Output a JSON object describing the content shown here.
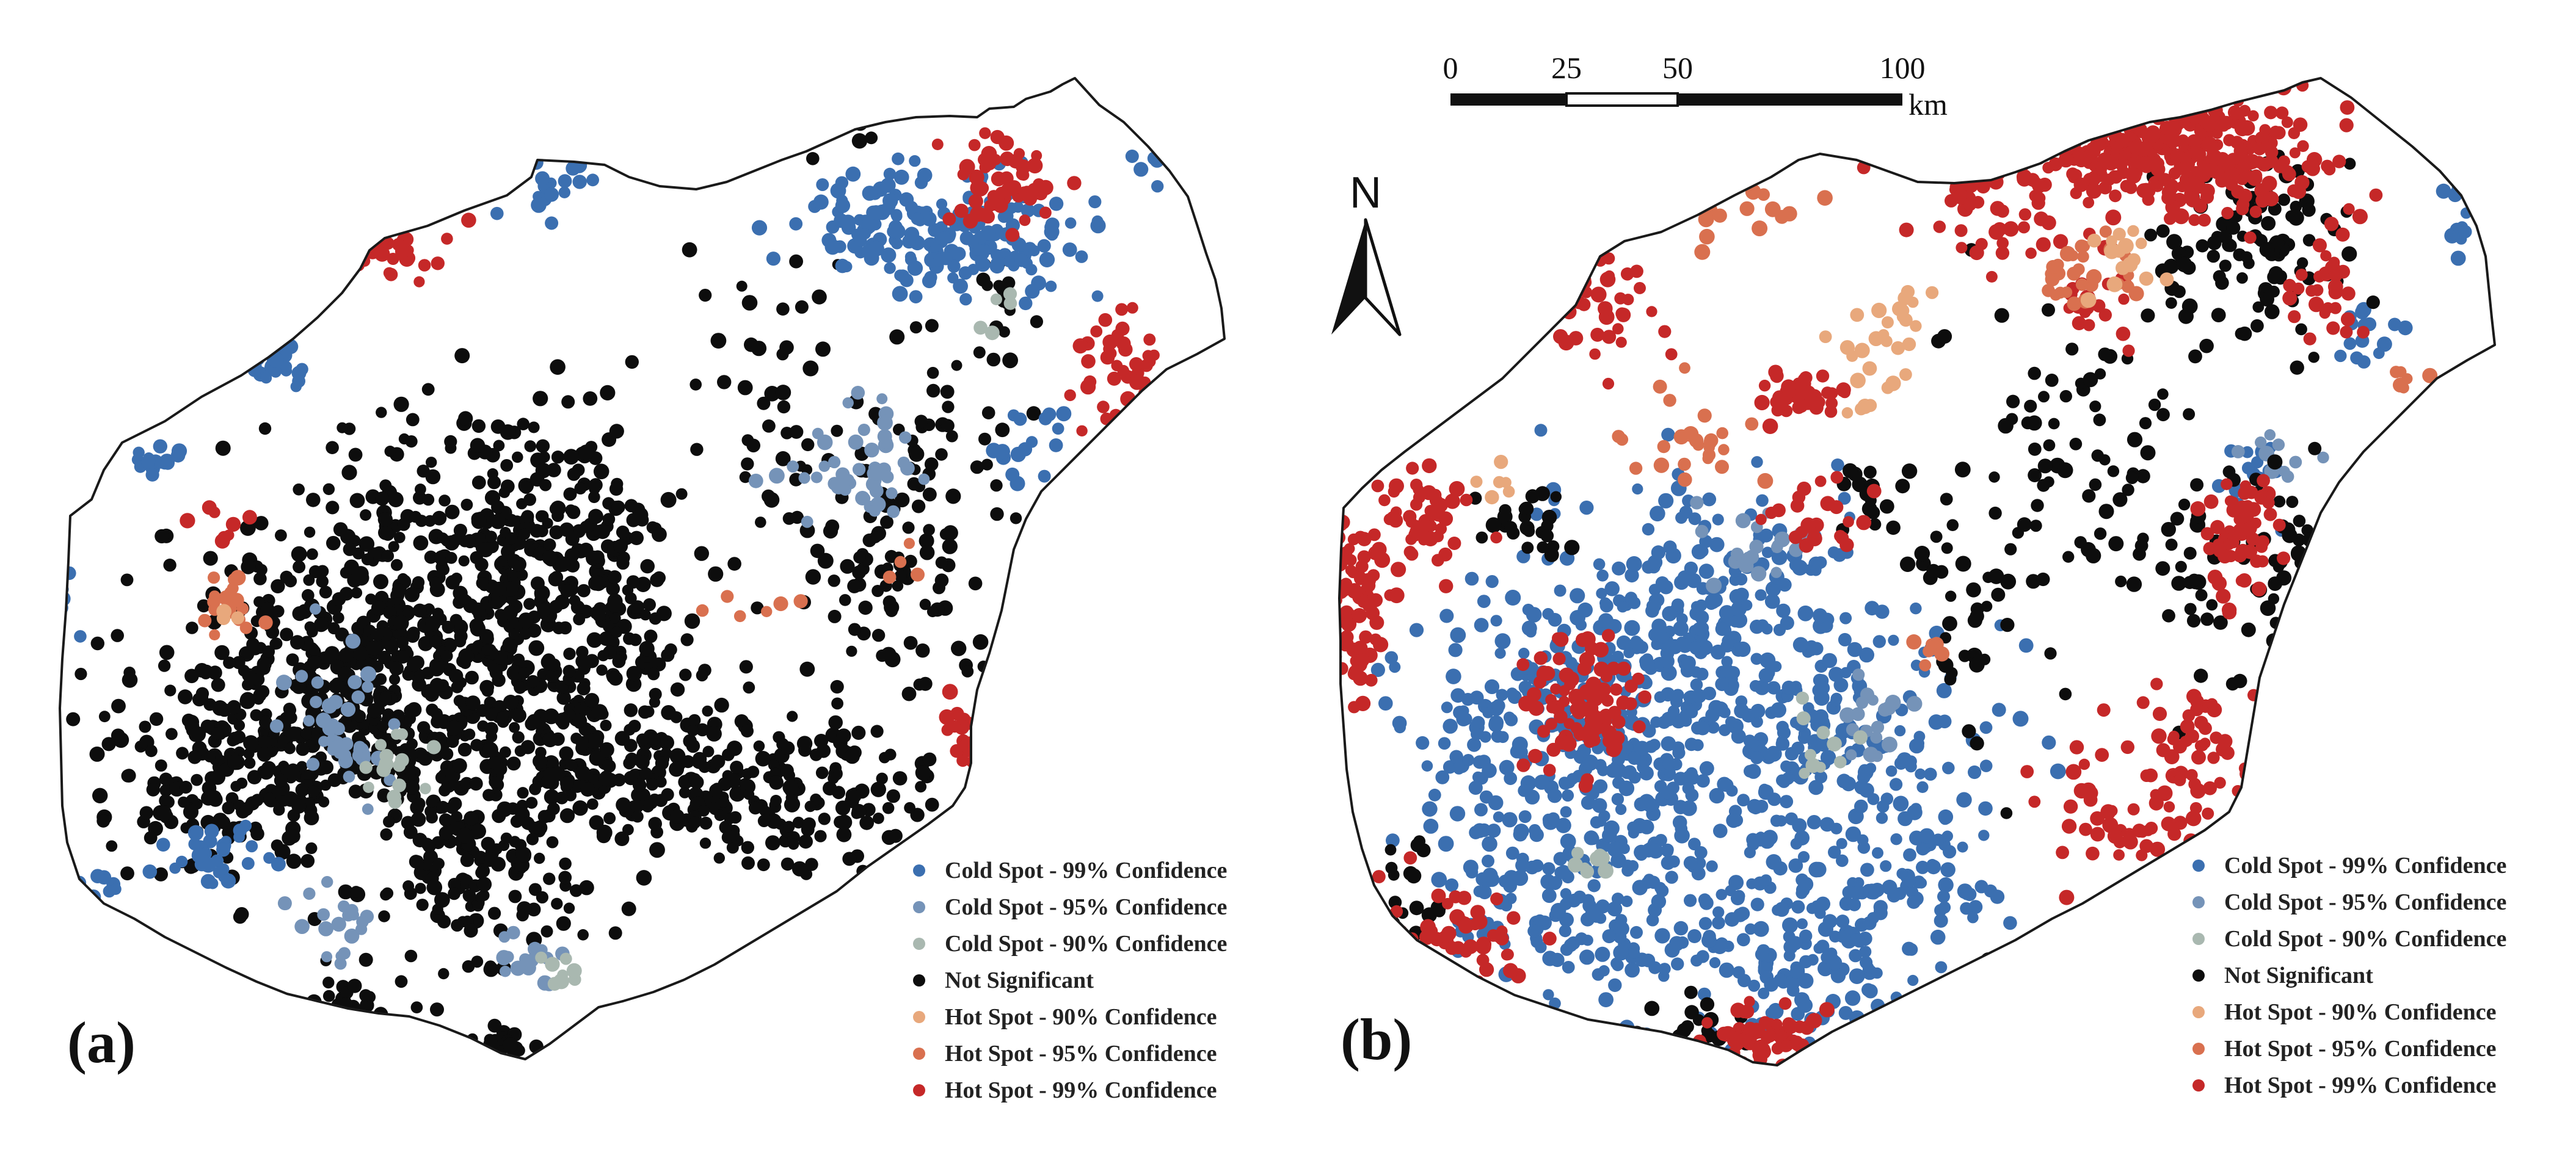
{
  "panels": [
    {
      "id": "a",
      "label": "(a)"
    },
    {
      "id": "b",
      "label": "(b)"
    }
  ],
  "legend": [
    {
      "label": "Cold Spot - 99% Confidence",
      "color": "#3b6fb0"
    },
    {
      "label": "Cold Spot - 95% Confidence",
      "color": "#7593b8"
    },
    {
      "label": "Cold Spot - 90% Confidence",
      "color": "#a9b8b0"
    },
    {
      "label": "Not Significant",
      "color": "#0d0d0d"
    },
    {
      "label": "Hot Spot - 90% Confidence",
      "color": "#e8a87c"
    },
    {
      "label": "Hot Spot - 95% Confidence",
      "color": "#d9704f"
    },
    {
      "label": "Hot Spot - 99% Confidence",
      "color": "#c52828"
    }
  ],
  "scale_bar": {
    "ticks": [
      "0",
      "25",
      "50",
      "100"
    ],
    "unit": "km"
  },
  "north_arrow": {
    "label": "N"
  }
}
